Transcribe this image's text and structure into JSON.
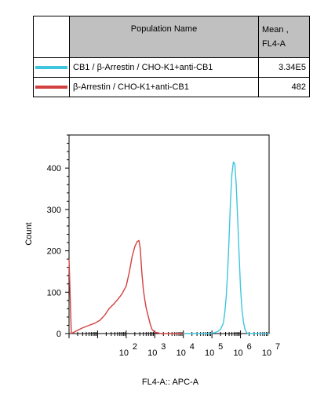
{
  "table": {
    "header_name": "Population Name",
    "header_mean_line1": "Mean ,",
    "header_mean_line2": "FL4-A",
    "rows": [
      {
        "name": "CB1 / β-Arrestin / CHO-K1+anti-CB1",
        "mean": "3.34E5",
        "color": "#3fc6de"
      },
      {
        "name": "β-Arrestin / CHO-K1+anti-CB1",
        "mean": "482",
        "color": "#d24040"
      }
    ]
  },
  "chart_data": {
    "type": "line",
    "xlabel": "FL4-A:: APC-A",
    "ylabel": "Count",
    "xscale": "log",
    "xlim": [
      1,
      10000000
    ],
    "ylim": [
      0,
      480
    ],
    "yticks": [
      0,
      100,
      200,
      300,
      400
    ],
    "xticks": [
      2,
      3,
      4,
      5,
      6,
      7
    ],
    "xtick_base": "10",
    "series": [
      {
        "name": "CB1 / β-Arrestin / CHO-K1+anti-CB1",
        "color": "#3fc6de",
        "x": [
          10000,
          79433,
          125893,
          158489,
          199526,
          251189,
          281838,
          316228,
          354813,
          398107,
          446684,
          501187,
          562341,
          630957,
          707946,
          794328,
          891251,
          1000000,
          1122018,
          1258925,
          1412538,
          1584893,
          1778279,
          10000000
        ],
        "y": [
          0,
          0,
          2,
          5,
          10,
          25,
          50,
          90,
          150,
          230,
          320,
          385,
          415,
          410,
          360,
          280,
          190,
          110,
          60,
          30,
          12,
          4,
          0,
          0
        ]
      },
      {
        "name": "β-Arrestin / CHO-K1+anti-CB1",
        "color": "#d24040",
        "x": [
          1,
          1.2,
          2,
          3,
          5,
          8,
          12,
          18,
          25,
          35,
          50,
          70,
          100,
          130,
          160,
          200,
          240,
          280,
          310,
          350,
          400,
          450,
          500,
          600,
          700,
          800,
          1000,
          1300,
          1600,
          2000,
          3000,
          10000
        ],
        "y": [
          180,
          0,
          8,
          14,
          20,
          25,
          32,
          45,
          60,
          70,
          82,
          95,
          115,
          150,
          185,
          210,
          222,
          225,
          205,
          150,
          105,
          80,
          62,
          40,
          22,
          10,
          3,
          2,
          0,
          0,
          0,
          0
        ]
      }
    ]
  }
}
